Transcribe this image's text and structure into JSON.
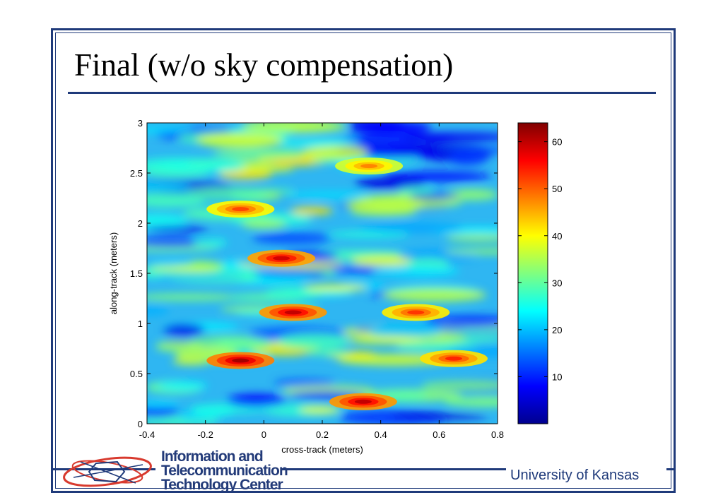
{
  "slide": {
    "title": "Final (w/o sky compensation)",
    "footer_org": "University of Kansas",
    "logo_lines": [
      "Information and",
      "Telecommunication",
      "Technology Center"
    ]
  },
  "colors": {
    "frame": "#1f3a7a",
    "footer_text": "#1f3a7a"
  },
  "chart_data": {
    "type": "heatmap",
    "xlabel": "cross-track (meters)",
    "ylabel": "along-track (meters)",
    "xlim": [
      -0.4,
      0.8
    ],
    "ylim": [
      0,
      3
    ],
    "x_ticks": [
      "-0.4",
      "-0.2",
      "0",
      "0.2",
      "0.4",
      "0.6",
      "0.8"
    ],
    "y_ticks": [
      "0",
      "0.5",
      "1",
      "1.5",
      "2",
      "2.5",
      "3"
    ],
    "colorbar": {
      "min": 0,
      "max": 64,
      "colormap": "jet",
      "ticks": [
        "10",
        "20",
        "30",
        "40",
        "50",
        "60"
      ]
    },
    "hotspots": [
      {
        "x": -0.08,
        "y": 0.63,
        "value": 62
      },
      {
        "x": 0.34,
        "y": 0.22,
        "value": 60
      },
      {
        "x": 0.1,
        "y": 1.11,
        "value": 60
      },
      {
        "x": 0.06,
        "y": 1.65,
        "value": 59
      },
      {
        "x": 0.65,
        "y": 0.65,
        "value": 54
      },
      {
        "x": 0.52,
        "y": 1.11,
        "value": 53
      },
      {
        "x": -0.08,
        "y": 2.14,
        "value": 52
      },
      {
        "x": 0.36,
        "y": 2.57,
        "value": 48
      }
    ]
  }
}
